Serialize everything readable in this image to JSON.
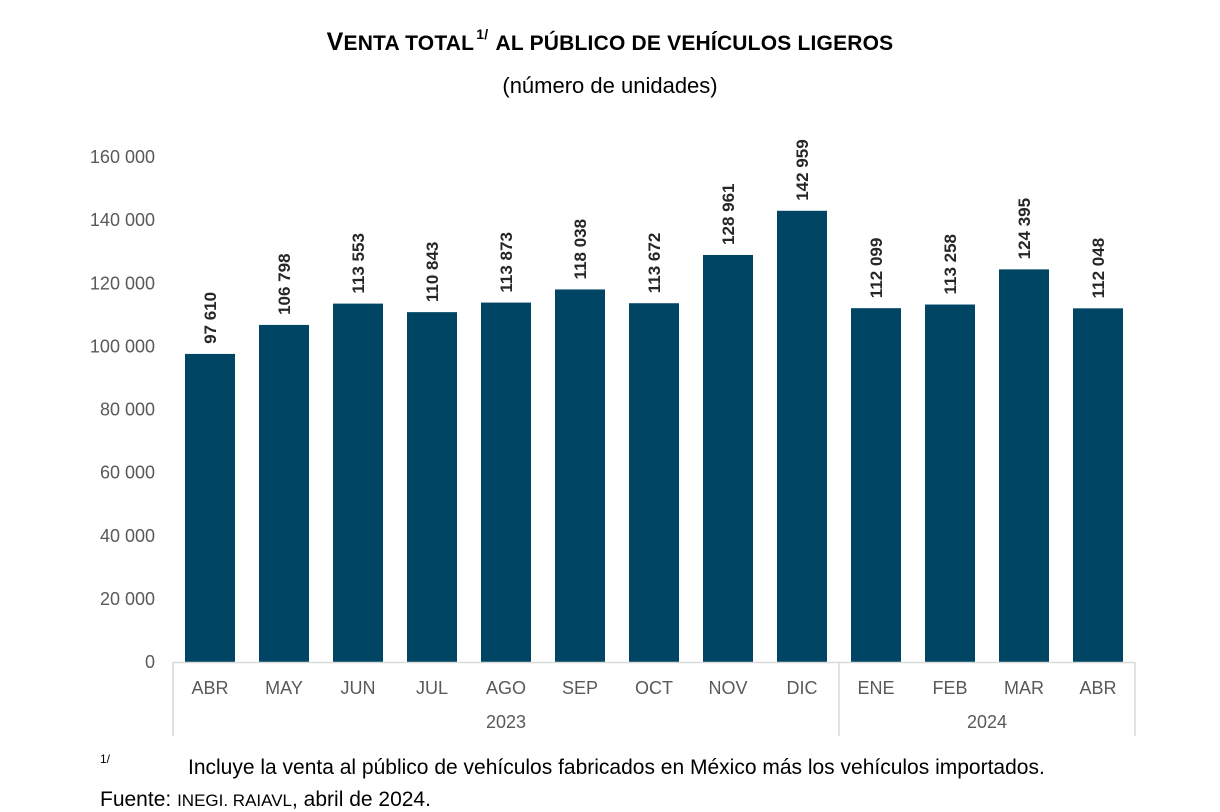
{
  "title": {
    "big_v": "V",
    "small_1": "ENTA TOTAL",
    "sup": "1/",
    "small_2": " AL PÚBLICO DE VEHÍCULOS LIGEROS"
  },
  "subtitle": "(número de unidades)",
  "footnote": {
    "mark": "1/",
    "text": "Incluye la venta al público de vehículos fabricados en México más los vehículos importados."
  },
  "source": {
    "label": "Fuente: ",
    "org": "INEGI. RAIAVL",
    "date": ", abril de 2024."
  },
  "chart_data": {
    "type": "bar",
    "categories": [
      "ABR",
      "MAY",
      "JUN",
      "JUL",
      "AGO",
      "SEP",
      "OCT",
      "NOV",
      "DIC",
      "ENE",
      "FEB",
      "MAR",
      "ABR"
    ],
    "values": [
      97610,
      106798,
      113553,
      110843,
      113873,
      118038,
      113672,
      128961,
      142959,
      112099,
      113258,
      124395,
      112048
    ],
    "value_labels": [
      "97 610",
      "106 798",
      "113 553",
      "110 843",
      "113 873",
      "118 038",
      "113 672",
      "128 961",
      "142 959",
      "112 099",
      "113 258",
      "124 395",
      "112 048"
    ],
    "year_groups": [
      {
        "label": "2023",
        "count": 9
      },
      {
        "label": "2024",
        "count": 4
      }
    ],
    "yticks": [
      0,
      20000,
      40000,
      60000,
      80000,
      100000,
      120000,
      140000,
      160000
    ],
    "ytick_labels": [
      "0",
      "20 000",
      "40 000",
      "60 000",
      "80 000",
      "100 000",
      "120 000",
      "140 000",
      "160 000"
    ],
    "ylim": [
      0,
      160000
    ],
    "grid": false,
    "bar_color": "#004563",
    "axis_color": "#d9d9d9",
    "tick_label_color": "#595959"
  }
}
